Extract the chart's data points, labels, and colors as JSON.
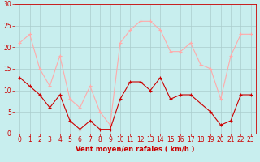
{
  "x": [
    0,
    1,
    2,
    3,
    4,
    5,
    6,
    7,
    8,
    9,
    10,
    11,
    12,
    13,
    14,
    15,
    16,
    17,
    18,
    19,
    20,
    21,
    22,
    23
  ],
  "wind_mean": [
    13,
    11,
    9,
    6,
    9,
    3,
    1,
    3,
    1,
    1,
    8,
    12,
    12,
    10,
    13,
    8,
    9,
    9,
    7,
    5,
    2,
    3,
    9,
    9
  ],
  "wind_gust": [
    21,
    23,
    15,
    11,
    18,
    8,
    6,
    11,
    5,
    2,
    21,
    24,
    26,
    26,
    24,
    19,
    19,
    21,
    16,
    15,
    8,
    18,
    23,
    23
  ],
  "mean_color": "#cc0000",
  "gust_color": "#ffaaaa",
  "bg_color": "#c8eeee",
  "grid_color": "#aacccc",
  "xlabel": "Vent moyen/en rafales ( km/h )",
  "xlabel_color": "#cc0000",
  "tick_color": "#cc0000",
  "ylim": [
    0,
    30
  ],
  "xlim": [
    -0.5,
    23.5
  ],
  "yticks": [
    0,
    5,
    10,
    15,
    20,
    25,
    30
  ],
  "xticks": [
    0,
    1,
    2,
    3,
    4,
    5,
    6,
    7,
    8,
    9,
    10,
    11,
    12,
    13,
    14,
    15,
    16,
    17,
    18,
    19,
    20,
    21,
    22,
    23
  ]
}
